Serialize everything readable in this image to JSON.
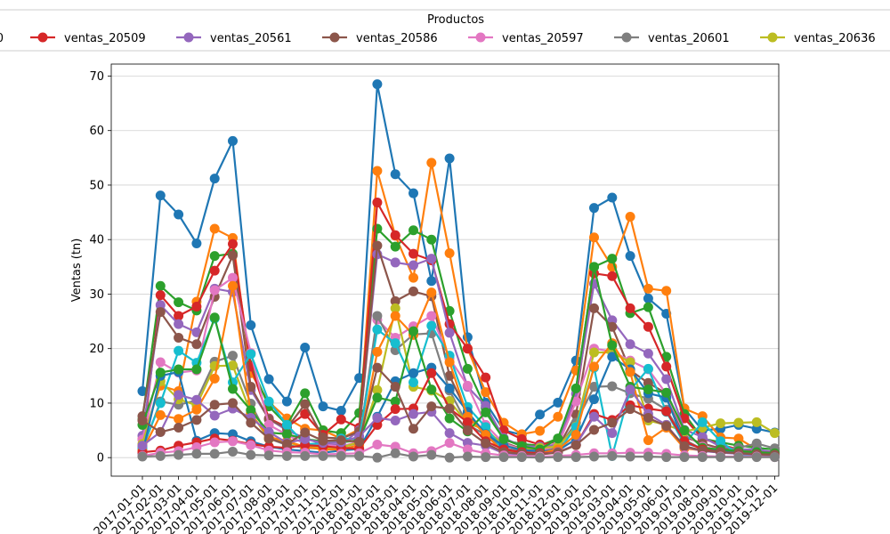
{
  "chart_data": {
    "type": "line",
    "xlabel": "",
    "ylabel": "Ventas (tn)",
    "ylim": [
      -3.4,
      72.2
    ],
    "yticks": [
      0,
      10,
      20,
      30,
      40,
      50,
      60,
      70
    ],
    "grid": "y",
    "legend": {
      "title": "Productos",
      "placement": "top",
      "partially_visible": true,
      "partial_first_label": "0"
    },
    "categories": [
      "2017-01-01",
      "2017-02-01",
      "2017-03-01",
      "2017-04-01",
      "2017-05-01",
      "2017-06-01",
      "2017-07-01",
      "2017-08-01",
      "2017-09-01",
      "2017-10-01",
      "2017-11-01",
      "2017-12-01",
      "2018-01-01",
      "2018-02-01",
      "2018-03-01",
      "2018-04-01",
      "2018-05-01",
      "2018-06-01",
      "2018-07-01",
      "2018-08-01",
      "2018-09-01",
      "2018-10-01",
      "2018-11-01",
      "2018-12-01",
      "2019-01-01",
      "2019-02-01",
      "2019-03-01",
      "2019-04-01",
      "2019-05-01",
      "2019-06-01",
      "2019-07-01",
      "2019-08-01",
      "2019-09-01",
      "2019-10-01",
      "2019-11-01",
      "2019-12-01"
    ],
    "series": [
      {
        "name": "",
        "color": "#1f77b4",
        "values": [
          12.2,
          48.1,
          44.6,
          39.3,
          51.2,
          58.1,
          24.3,
          14.4,
          10.3,
          20.2,
          9.4,
          8.6,
          14.6,
          68.5,
          52.0,
          48.5,
          32.4,
          54.9,
          22.1,
          10.1,
          5.0,
          4.2,
          7.9,
          10.1,
          17.8,
          45.8,
          47.7,
          37.0,
          29.2,
          26.4,
          9.0,
          5.0,
          5.3,
          6.0,
          5.3,
          4.6
        ]
      },
      {
        "name": "",
        "color": "#ff7f0e",
        "values": [
          3.4,
          13.2,
          12.2,
          28.6,
          42.0,
          40.3,
          15.5,
          10.2,
          7.2,
          5.3,
          5.0,
          3.5,
          5.2,
          52.6,
          40.7,
          33.0,
          54.1,
          37.5,
          20.0,
          12.0,
          6.4,
          4.3,
          4.9,
          7.5,
          16.0,
          40.4,
          35.0,
          44.2,
          31.0,
          30.6,
          9.0,
          7.6,
          3.7,
          3.5,
          1.5,
          0.5
        ]
      },
      {
        "name": "",
        "color": "#2ca02c",
        "values": [
          7.0,
          31.5,
          28.5,
          27.0,
          37.0,
          37.4,
          17.0,
          9.4,
          6.0,
          11.8,
          5.0,
          4.5,
          8.2,
          42.0,
          38.7,
          41.7,
          40.0,
          26.9,
          16.3,
          9.1,
          3.2,
          2.5,
          2.2,
          3.5,
          12.6,
          35.0,
          36.5,
          26.5,
          27.6,
          18.5,
          8.0,
          3.5,
          2.8,
          2.2,
          1.8,
          1.5
        ]
      },
      {
        "name": "ventas_20509",
        "color": "#d62728",
        "values": [
          2.2,
          29.8,
          26.0,
          27.7,
          34.3,
          39.2,
          16.7,
          7.2,
          5.6,
          8.0,
          4.2,
          7.0,
          5.5,
          46.8,
          40.8,
          37.4,
          36.2,
          24.5,
          20.0,
          14.7,
          5.0,
          3.4,
          2.4,
          2.9,
          10.7,
          33.8,
          33.3,
          27.4,
          24.0,
          16.7,
          7.2,
          3.5,
          2.4,
          1.5,
          1.0,
          0.5
        ]
      },
      {
        "name": "ventas_20561",
        "color": "#9467bd",
        "values": [
          4.0,
          28.0,
          24.5,
          23.0,
          31.0,
          30.4,
          12.4,
          7.1,
          5.0,
          3.6,
          2.4,
          2.4,
          5.0,
          37.3,
          35.8,
          35.3,
          36.5,
          22.9,
          13.0,
          9.5,
          3.6,
          2.1,
          2.0,
          2.4,
          11.7,
          31.9,
          25.2,
          20.8,
          19.1,
          14.4,
          5.1,
          3.8,
          2.0,
          1.5,
          1.5,
          1.0
        ]
      },
      {
        "name": "ventas_20586",
        "color": "#8c564b",
        "values": [
          7.6,
          26.7,
          22.0,
          20.8,
          29.5,
          37.1,
          13.0,
          7.0,
          5.4,
          9.8,
          3.7,
          3.5,
          4.8,
          38.9,
          28.7,
          30.5,
          29.6,
          15.0,
          8.1,
          4.5,
          2.8,
          1.6,
          1.5,
          1.8,
          7.9,
          27.4,
          24.0,
          16.0,
          13.7,
          11.8,
          3.8,
          2.6,
          1.7,
          1.2,
          1.0,
          0.9
        ]
      },
      {
        "name": "ventas_20597",
        "color": "#e377c2",
        "values": [
          3.3,
          17.5,
          15.6,
          16.0,
          30.7,
          33.0,
          19.2,
          6.0,
          4.2,
          2.5,
          2.4,
          2.0,
          3.0,
          25.3,
          22.0,
          24.1,
          26.0,
          18.2,
          13.2,
          6.0,
          2.6,
          1.5,
          1.2,
          2.2,
          10.3,
          20.0,
          19.5,
          17.8,
          16.2,
          11.7,
          4.5,
          2.0,
          1.5,
          0.8,
          0.5,
          0.3
        ]
      },
      {
        "name": "ventas_20601",
        "color": "#7f7f7f",
        "values": [
          1.5,
          10.3,
          9.7,
          10.5,
          17.6,
          18.7,
          9.9,
          3.5,
          2.3,
          1.8,
          1.6,
          1.9,
          2.7,
          26.0,
          19.7,
          22.6,
          22.8,
          12.3,
          6.0,
          4.2,
          1.7,
          1.2,
          1.0,
          1.7,
          6.4,
          13.0,
          13.1,
          11.8,
          10.8,
          8.8,
          3.3,
          1.5,
          1.1,
          1.8,
          2.6,
          1.7
        ]
      },
      {
        "name": "ventas_20636",
        "color": "#bcbd22",
        "values": [
          2.5,
          14.0,
          10.7,
          9.6,
          16.8,
          16.9,
          8.2,
          3.4,
          2.8,
          2.0,
          1.8,
          1.8,
          2.9,
          12.4,
          27.4,
          13.0,
          12.3,
          10.4,
          6.2,
          5.2,
          2.2,
          1.5,
          1.8,
          2.0,
          5.7,
          19.3,
          19.3,
          17.5,
          6.8,
          6.0,
          4.8,
          5.5,
          6.3,
          6.4,
          6.5,
          4.5
        ]
      },
      {
        "name": "",
        "color": "#17becf",
        "values": [
          1.8,
          10.0,
          19.6,
          17.4,
          25.5,
          13.8,
          19.0,
          10.3,
          6.0,
          2.5,
          2.6,
          3.5,
          3.4,
          23.5,
          21.0,
          13.8,
          24.2,
          18.7,
          9.3,
          5.6,
          1.3,
          0.8,
          0.8,
          1.1,
          5.6,
          16.5,
          0.3,
          12.4,
          16.3,
          8.4,
          2.5,
          6.5,
          3.0,
          0.5,
          0.4,
          0.2
        ]
      },
      {
        "name": "",
        "color": "#1f77b4",
        "values": [
          0.8,
          15.0,
          15.7,
          3.1,
          4.5,
          4.3,
          3.0,
          2.0,
          1.5,
          1.2,
          0.9,
          1.3,
          1.6,
          7.5,
          14.0,
          15.5,
          16.5,
          12.7,
          8.4,
          4.3,
          2.2,
          1.4,
          1.2,
          1.3,
          3.4,
          10.7,
          18.5,
          16.2,
          11.8,
          11.0,
          2.7,
          1.7,
          1.3,
          1.1,
          0.8,
          0.7
        ]
      },
      {
        "name": "",
        "color": "#ff7f0e",
        "values": [
          1.2,
          7.8,
          7.1,
          8.8,
          14.5,
          31.5,
          8.0,
          3.8,
          3.0,
          2.0,
          1.5,
          1.5,
          2.3,
          19.4,
          26.0,
          22.5,
          30.3,
          17.5,
          7.5,
          4.2,
          1.0,
          0.8,
          0.8,
          1.5,
          4.2,
          16.7,
          21.0,
          15.7,
          3.2,
          5.5,
          1.7,
          1.3,
          1.0,
          0.8,
          0.6,
          0.5
        ]
      },
      {
        "name": "",
        "color": "#2ca02c",
        "values": [
          6.0,
          15.6,
          16.2,
          16.2,
          25.7,
          12.6,
          8.7,
          4.6,
          4.3,
          3.4,
          3.0,
          2.8,
          3.2,
          11.0,
          10.3,
          23.2,
          12.5,
          7.2,
          4.8,
          8.3,
          3.4,
          2.1,
          1.5,
          3.5,
          12.7,
          35.0,
          20.6,
          13.0,
          12.5,
          11.9,
          5.0,
          1.8,
          1.5,
          1.2,
          1.0,
          0.8
        ]
      },
      {
        "name": "",
        "color": "#d62728",
        "values": [
          1.0,
          1.3,
          2.2,
          2.8,
          3.5,
          3.1,
          2.5,
          2.0,
          1.8,
          2.3,
          2.1,
          1.8,
          1.6,
          6.0,
          8.9,
          9.0,
          15.5,
          9.0,
          6.5,
          3.0,
          1.5,
          1.0,
          0.8,
          1.0,
          2.3,
          8.0,
          6.9,
          9.6,
          9.0,
          8.5,
          3.0,
          1.5,
          1.0,
          0.8,
          0.6,
          0.5
        ]
      },
      {
        "name": "",
        "color": "#9467bd",
        "values": [
          2.2,
          4.7,
          11.5,
          10.6,
          7.7,
          9.0,
          7.3,
          4.7,
          2.7,
          3.4,
          2.7,
          2.8,
          3.9,
          7.3,
          6.8,
          8.0,
          8.4,
          4.5,
          2.7,
          2.2,
          0.8,
          0.6,
          0.6,
          1.0,
          2.4,
          7.5,
          4.5,
          12.5,
          8.0,
          6.0,
          2.0,
          1.2,
          0.9,
          0.7,
          0.5,
          0.4
        ]
      },
      {
        "name": "",
        "color": "#8c564b",
        "values": [
          6.8,
          4.7,
          5.5,
          6.9,
          9.7,
          10.0,
          6.4,
          3.5,
          2.5,
          4.6,
          3.1,
          3.2,
          2.9,
          16.5,
          13.0,
          5.3,
          9.4,
          9.0,
          5.0,
          2.6,
          1.0,
          0.7,
          0.6,
          0.9,
          2.3,
          5.1,
          6.4,
          8.9,
          7.3,
          5.8,
          2.1,
          1.3,
          1.0,
          0.8,
          0.6,
          0.5
        ]
      },
      {
        "name": "",
        "color": "#e377c2",
        "values": [
          0.3,
          0.9,
          1.2,
          1.9,
          2.8,
          3.0,
          2.3,
          1.3,
          1.0,
          0.9,
          0.6,
          0.7,
          0.8,
          2.4,
          2.0,
          0.8,
          1.2,
          2.7,
          1.5,
          0.8,
          0.4,
          0.3,
          0.2,
          0.3,
          0.5,
          0.8,
          0.8,
          0.9,
          0.9,
          0.7,
          0.4,
          0.3,
          0.2,
          0.2,
          0.2,
          0.1
        ]
      },
      {
        "name": "",
        "color": "#7f7f7f",
        "values": [
          0.2,
          0.3,
          0.5,
          0.7,
          0.7,
          1.1,
          0.5,
          0.4,
          0.3,
          0.3,
          0.3,
          0.3,
          0.3,
          0.0,
          0.8,
          0.2,
          0.5,
          0.0,
          0.2,
          0.1,
          0.1,
          0.1,
          0.0,
          0.1,
          0.1,
          0.2,
          0.3,
          0.2,
          0.2,
          0.1,
          0.1,
          0.1,
          0.1,
          0.1,
          0.1,
          0.1
        ]
      }
    ],
    "legend_entries": [
      {
        "label": "0",
        "color": "#17becf"
      },
      {
        "label": "ventas_20509",
        "color": "#d62728"
      },
      {
        "label": "ventas_20561",
        "color": "#9467bd"
      },
      {
        "label": "ventas_20586",
        "color": "#8c564b"
      },
      {
        "label": "ventas_20597",
        "color": "#e377c2"
      },
      {
        "label": "ventas_20601",
        "color": "#7f7f7f"
      },
      {
        "label": "ventas_20636",
        "color": "#bcbd22"
      }
    ]
  }
}
